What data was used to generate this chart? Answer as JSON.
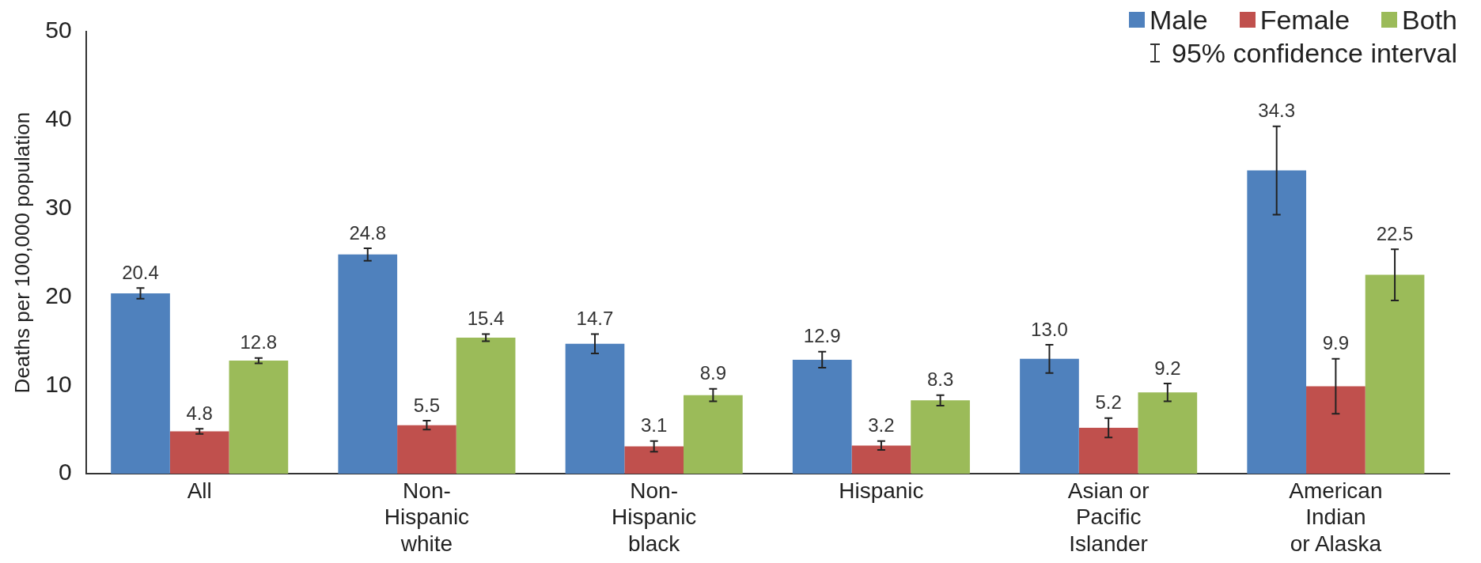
{
  "chart_data": {
    "type": "bar",
    "ylabel": "Deaths per 100,000 population",
    "categories": [
      "All",
      "Non-\nHispanic\nwhite",
      "Non-\nHispanic\nblack",
      "Hispanic",
      "Asian or\nPacific\nIslander",
      "American\nIndian\nor Alaska"
    ],
    "series": [
      {
        "name": "Male",
        "color": "#4f81bd",
        "values": [
          20.4,
          24.8,
          14.7,
          12.9,
          13.0,
          34.3
        ],
        "errors": [
          0.6,
          0.7,
          1.1,
          0.9,
          1.6,
          5.0
        ],
        "value_labels": [
          "20.4",
          "24.8",
          "14.7",
          "12.9",
          "13.0",
          "34.3"
        ]
      },
      {
        "name": "Female",
        "color": "#c0504d",
        "values": [
          4.8,
          5.5,
          3.1,
          3.2,
          5.2,
          9.9
        ],
        "errors": [
          0.3,
          0.5,
          0.6,
          0.5,
          1.1,
          3.1
        ],
        "value_labels": [
          "4.8",
          "5.5",
          "3.1",
          "3.2",
          "5.2",
          "9.9"
        ]
      },
      {
        "name": "Both",
        "color": "#9bbb59",
        "values": [
          12.8,
          15.4,
          8.9,
          8.3,
          9.2,
          22.5
        ],
        "errors": [
          0.3,
          0.4,
          0.7,
          0.6,
          1.0,
          2.9
        ],
        "value_labels": [
          "12.8",
          "15.4",
          "8.9",
          "8.3",
          "9.2",
          "22.5"
        ]
      }
    ],
    "annotations": [
      "95% confidence interval"
    ],
    "ylim": [
      0,
      50
    ],
    "yticks": [
      0,
      10,
      20,
      30,
      40,
      50
    ],
    "grid": false,
    "legend": "top right"
  }
}
